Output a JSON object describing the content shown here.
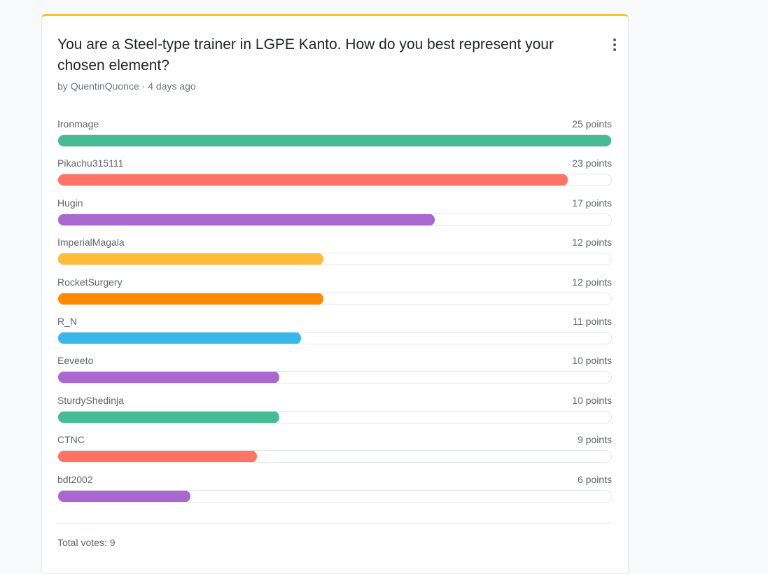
{
  "poll": {
    "title": "You are a Steel-type trainer in LGPE Kanto. How do you best represent your chosen element?",
    "author_prefix": "by ",
    "author": "QuentinQuonce",
    "separator": " · ",
    "time_ago": "4 days ago",
    "max_points": 25,
    "results": [
      {
        "name": "Ironmage",
        "points": 25,
        "points_label": "25 points",
        "color": "#45bc93"
      },
      {
        "name": "Pikachu315111",
        "points": 23,
        "points_label": "23 points",
        "color": "#ff7466"
      },
      {
        "name": "Hugin",
        "points": 17,
        "points_label": "17 points",
        "color": "#a968cf"
      },
      {
        "name": "ImperialMagala",
        "points": 12,
        "points_label": "12 points",
        "color": "#ffbc3a"
      },
      {
        "name": "RocketSurgery",
        "points": 12,
        "points_label": "12 points",
        "color": "#ff8a00"
      },
      {
        "name": "R_N",
        "points": 11,
        "points_label": "11 points",
        "color": "#38b8e8"
      },
      {
        "name": "Eeveeto",
        "points": 10,
        "points_label": "10 points",
        "color": "#a968cf"
      },
      {
        "name": "SturdyShedinja",
        "points": 10,
        "points_label": "10 points",
        "color": "#45bc93"
      },
      {
        "name": "CTNC",
        "points": 9,
        "points_label": "9 points",
        "color": "#ff7466"
      },
      {
        "name": "bdt2002",
        "points": 6,
        "points_label": "6 points",
        "color": "#a968cf"
      }
    ],
    "total_votes_label": "Total votes: 9"
  },
  "icons": {
    "menu": "vertical-ellipsis-icon"
  }
}
